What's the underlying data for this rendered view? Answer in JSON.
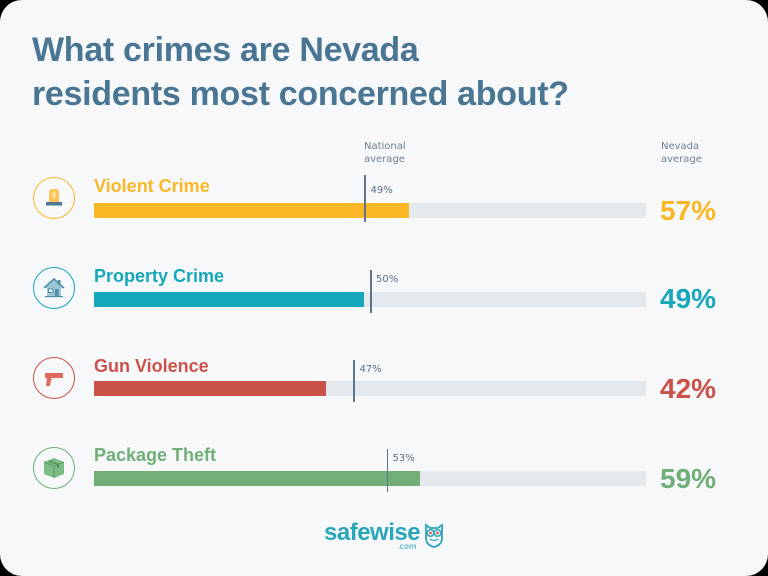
{
  "title_line1": "What crimes are Nevada",
  "title_line2": "residents most concerned about?",
  "column_labels": {
    "national_line1": "National",
    "national_line2": "average",
    "nevada_line1": "Nevada",
    "nevada_line2": "average"
  },
  "rows": [
    {
      "label": "Violent Crime",
      "icon": "siren-icon",
      "nevada": 57,
      "nevada_text": "57%",
      "national": 49,
      "national_text": "49%",
      "color": "#fbb726"
    },
    {
      "label": "Property Crime",
      "icon": "house-icon",
      "nevada": 49,
      "nevada_text": "49%",
      "national": 50,
      "national_text": "50%",
      "color": "#17a7ba"
    },
    {
      "label": "Gun Violence",
      "icon": "handgun-icon",
      "nevada": 42,
      "nevada_text": "42%",
      "national": 47,
      "national_text": "47%",
      "color": "#cb5248"
    },
    {
      "label": "Package Theft",
      "icon": "package-box-icon",
      "nevada": 59,
      "nevada_text": "59%",
      "national": 53,
      "national_text": "53%",
      "color": "#72ae78"
    }
  ],
  "logo": {
    "brand": "safewise",
    "suffix": ".com"
  },
  "chart_data": {
    "type": "bar",
    "orientation": "horizontal",
    "title": "What crimes are Nevada residents most concerned about?",
    "categories": [
      "Violent Crime",
      "Property Crime",
      "Gun Violence",
      "Package Theft"
    ],
    "series": [
      {
        "name": "Nevada average",
        "values": [
          57,
          49,
          42,
          59
        ]
      },
      {
        "name": "National average",
        "values": [
          49,
          50,
          47,
          53
        ],
        "style": "marker-line"
      }
    ],
    "xlim": [
      0,
      100
    ],
    "unit": "%",
    "grid": false,
    "legend": "column headers (National average / Nevada average)"
  }
}
